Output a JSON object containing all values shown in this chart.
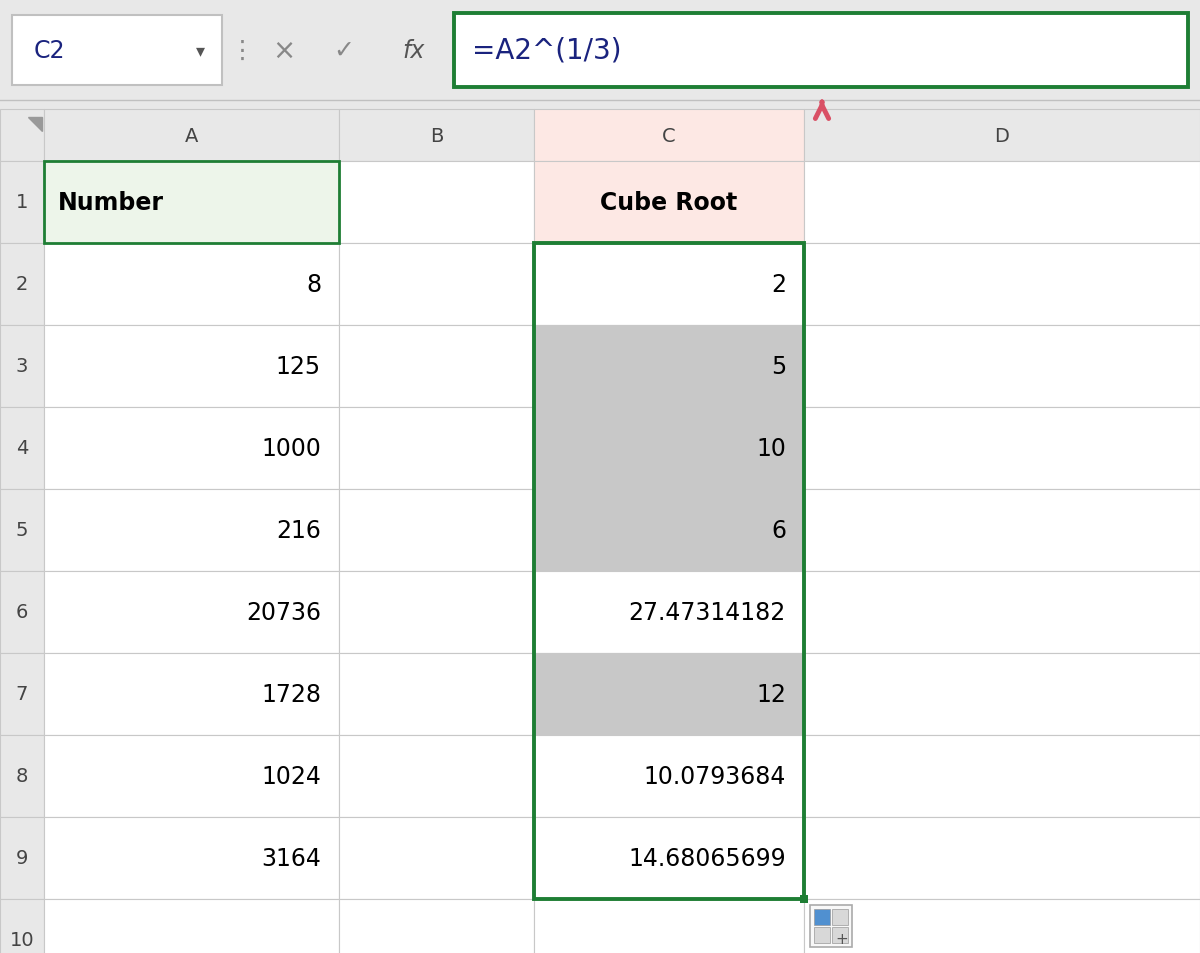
{
  "formula_bar_cell": "C2",
  "formula_bar_formula": "=A2^(1/3)",
  "col_a_header": "Number",
  "col_c_header": "Cube Root",
  "col_a_data": [
    "8",
    "125",
    "1000",
    "216",
    "20736",
    "1728",
    "1024",
    "3164"
  ],
  "col_c_data": [
    "2",
    "5",
    "10",
    "6",
    "27.47314182",
    "12",
    "10.0793684",
    "14.68065699"
  ],
  "row_c_shaded": [
    false,
    true,
    true,
    true,
    false,
    true,
    false,
    false
  ],
  "bg_color": "#e8e8e8",
  "white": "#ffffff",
  "cell_border_color": "#c8c8c8",
  "selected_cell_border": "#1e7e34",
  "formula_box_border": "#1e7e34",
  "formula_box_bg": "#ffffff",
  "header_bg": "#e8e8e8",
  "col_a_row1_bg": "#edf5ea",
  "col_c_header_bg": "#fde8e4",
  "arrow_color": "#d95065",
  "row_shaded_color": "#c8c8c8",
  "cell_ref_bg": "#ffffff",
  "cell_ref_border": "#c0c0c0",
  "formula_text_color": "#1a237e",
  "cell_ref_text_color": "#1a237e"
}
